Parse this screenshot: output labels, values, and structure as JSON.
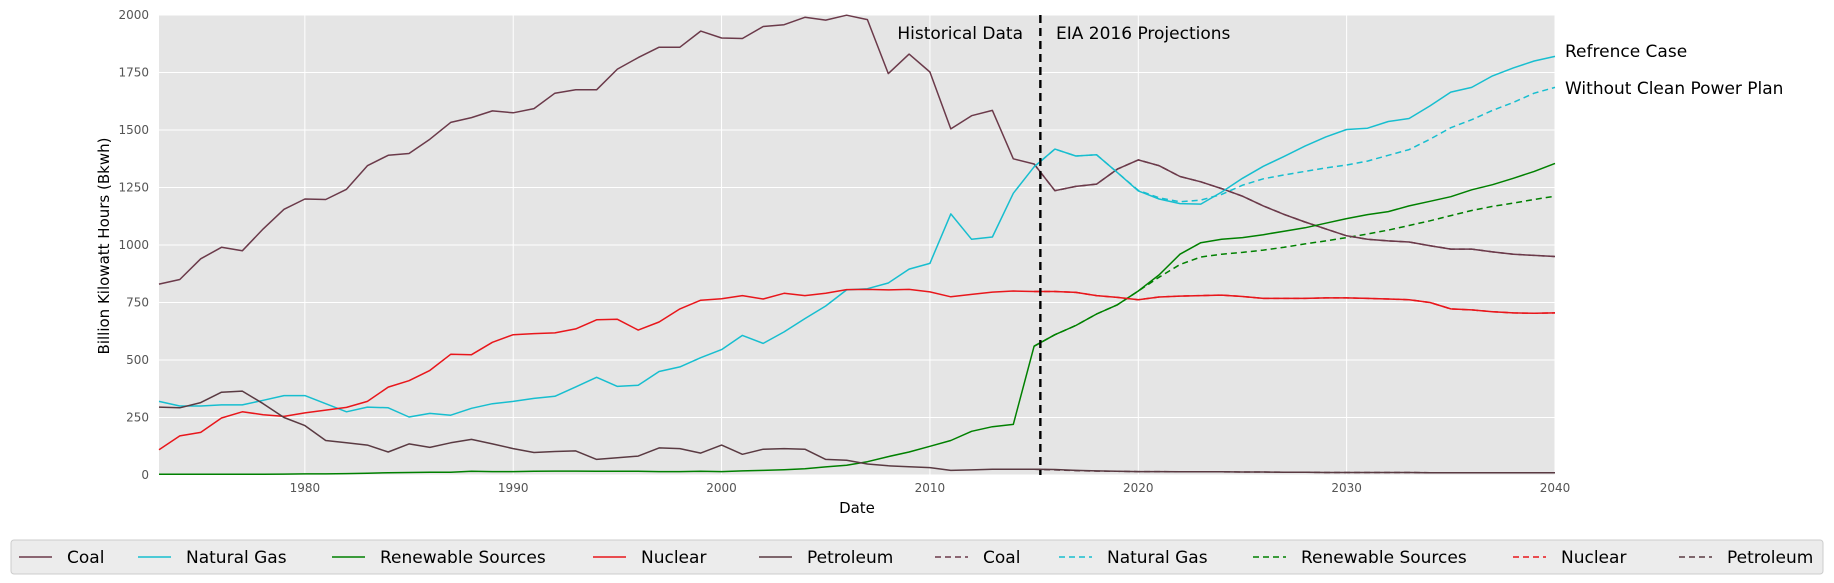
{
  "chart_data": {
    "type": "line",
    "title": "",
    "xlabel": "Date",
    "ylabel": "Billion Kilowatt Hours (Bkwh)",
    "xlim": [
      1973,
      2040
    ],
    "ylim": [
      0,
      2000
    ],
    "x_ticks": [
      "1980",
      "1990",
      "2000",
      "2010",
      "2020",
      "2030",
      "2040"
    ],
    "y_ticks": [
      "0",
      "250",
      "500",
      "750",
      "1000",
      "1250",
      "1500",
      "1750",
      "2000"
    ],
    "grid": true,
    "divider_x": 2015.3,
    "annotations": {
      "historical": "Historical Data",
      "projections": "EIA 2016 Projections",
      "reference_case": "Refrence Case",
      "without_cpp": "Without Clean Power Plan"
    },
    "legend_position": "bottom",
    "colors": {
      "coal": "#6b3a4a",
      "natural_gas": "#17becf",
      "renewable": "#008000",
      "nuclear": "#e8161b",
      "petroleum": "#5a3a42"
    },
    "series": [
      {
        "name": "Coal",
        "style": "solid",
        "color": "#6b3a4a",
        "x": [
          1973,
          1974,
          1975,
          1976,
          1977,
          1978,
          1979,
          1980,
          1981,
          1982,
          1983,
          1984,
          1985,
          1986,
          1987,
          1988,
          1989,
          1990,
          1991,
          1992,
          1993,
          1994,
          1995,
          1996,
          1997,
          1998,
          1999,
          2000,
          2001,
          2002,
          2003,
          2004,
          2005,
          2006,
          2007,
          2008,
          2009,
          2010,
          2011,
          2012,
          2013,
          2014,
          2015,
          2016,
          2017,
          2018,
          2019,
          2020,
          2021,
          2022,
          2023,
          2024,
          2025,
          2026,
          2027,
          2028,
          2029,
          2030,
          2031,
          2032,
          2033,
          2034,
          2035,
          2036,
          2037,
          2038,
          2039,
          2040
        ],
        "values": [
          830,
          850,
          940,
          990,
          975,
          1070,
          1155,
          1200,
          1198,
          1242,
          1345,
          1390,
          1398,
          1460,
          1533,
          1554,
          1583,
          1575,
          1593,
          1660,
          1675,
          1675,
          1765,
          1815,
          1860,
          1860,
          1930,
          1900,
          1898,
          1950,
          1958,
          1990,
          1978,
          1999,
          1980,
          1745,
          1830,
          1752,
          1505,
          1562,
          1585,
          1375,
          1352,
          1236,
          1255,
          1265,
          1330,
          1370,
          1345,
          1298,
          1275,
          1245,
          1212,
          1170,
          1133,
          1100,
          1070,
          1040,
          1025,
          1018,
          1013,
          997,
          982,
          982,
          970,
          960,
          955,
          950
        ]
      },
      {
        "name": "Natural Gas",
        "style": "solid",
        "color": "#17becf",
        "x": [
          1973,
          1974,
          1975,
          1976,
          1977,
          1978,
          1979,
          1980,
          1981,
          1982,
          1983,
          1984,
          1985,
          1986,
          1987,
          1988,
          1989,
          1990,
          1991,
          1992,
          1993,
          1994,
          1995,
          1996,
          1997,
          1998,
          1999,
          2000,
          2001,
          2002,
          2003,
          2004,
          2005,
          2006,
          2007,
          2008,
          2009,
          2010,
          2011,
          2012,
          2013,
          2014,
          2015,
          2016,
          2017,
          2018,
          2019,
          2020,
          2021,
          2022,
          2023,
          2024,
          2025,
          2026,
          2027,
          2028,
          2029,
          2030,
          2031,
          2032,
          2033,
          2034,
          2035,
          2036,
          2037,
          2038,
          2039,
          2040
        ],
        "values": [
          320,
          300,
          300,
          305,
          305,
          325,
          345,
          345,
          310,
          275,
          295,
          292,
          252,
          268,
          260,
          290,
          310,
          320,
          333,
          342,
          383,
          425,
          385,
          390,
          450,
          470,
          510,
          545,
          607,
          572,
          622,
          680,
          735,
          805,
          810,
          835,
          895,
          920,
          1135,
          1025,
          1035,
          1225,
          1340,
          1417,
          1387,
          1392,
          1315,
          1235,
          1200,
          1180,
          1178,
          1230,
          1290,
          1342,
          1385,
          1430,
          1470,
          1502,
          1508,
          1537,
          1550,
          1605,
          1665,
          1685,
          1735,
          1770,
          1800,
          1820
        ]
      },
      {
        "name": "Renewable Sources",
        "style": "solid",
        "color": "#008000",
        "x": [
          1973,
          1974,
          1975,
          1976,
          1977,
          1978,
          1979,
          1980,
          1981,
          1982,
          1983,
          1984,
          1985,
          1986,
          1987,
          1988,
          1989,
          1990,
          1991,
          1992,
          1993,
          1994,
          1995,
          1996,
          1997,
          1998,
          1999,
          2000,
          2001,
          2002,
          2003,
          2004,
          2005,
          2006,
          2007,
          2008,
          2009,
          2010,
          2011,
          2012,
          2013,
          2014,
          2015,
          2016,
          2017,
          2018,
          2019,
          2020,
          2021,
          2022,
          2023,
          2024,
          2025,
          2026,
          2027,
          2028,
          2029,
          2030,
          2031,
          2032,
          2033,
          2034,
          2035,
          2036,
          2037,
          2038,
          2039,
          2040
        ],
        "values": [
          3,
          3,
          3,
          3,
          3,
          3,
          4,
          5,
          5,
          6,
          8,
          10,
          11,
          12,
          12,
          16,
          15,
          15,
          16,
          17,
          17,
          16,
          16,
          16,
          15,
          15,
          16,
          15,
          18,
          20,
          23,
          27,
          35,
          42,
          58,
          80,
          100,
          125,
          150,
          190,
          210,
          220,
          560,
          610,
          650,
          700,
          740,
          800,
          870,
          960,
          1010,
          1025,
          1032,
          1045,
          1060,
          1075,
          1095,
          1115,
          1132,
          1145,
          1170,
          1190,
          1210,
          1240,
          1262,
          1290,
          1320,
          1355
        ]
      },
      {
        "name": "Nuclear",
        "style": "solid",
        "color": "#e8161b",
        "x": [
          1973,
          1974,
          1975,
          1976,
          1977,
          1978,
          1979,
          1980,
          1981,
          1982,
          1983,
          1984,
          1985,
          1986,
          1987,
          1988,
          1989,
          1990,
          1991,
          1992,
          1993,
          1994,
          1995,
          1996,
          1997,
          1998,
          1999,
          2000,
          2001,
          2002,
          2003,
          2004,
          2005,
          2006,
          2007,
          2008,
          2009,
          2010,
          2011,
          2012,
          2013,
          2014,
          2015,
          2016,
          2017,
          2018,
          2019,
          2020,
          2021,
          2022,
          2023,
          2024,
          2025,
          2026,
          2027,
          2028,
          2029,
          2030,
          2031,
          2032,
          2033,
          2034,
          2035,
          2036,
          2037,
          2038,
          2039,
          2040
        ],
        "values": [
          110,
          170,
          185,
          248,
          275,
          262,
          255,
          270,
          282,
          294,
          320,
          382,
          410,
          455,
          525,
          523,
          577,
          610,
          615,
          618,
          635,
          675,
          677,
          630,
          665,
          722,
          760,
          766,
          780,
          765,
          790,
          780,
          790,
          806,
          807,
          805,
          807,
          796,
          775,
          785,
          795,
          800,
          798,
          798,
          794,
          780,
          772,
          762,
          774,
          778,
          780,
          782,
          776,
          768,
          768,
          768,
          770,
          770,
          768,
          765,
          762,
          750,
          722,
          718,
          710,
          705,
          703,
          705
        ]
      },
      {
        "name": "Petroleum",
        "style": "solid",
        "color": "#5a3a42",
        "x": [
          1973,
          1974,
          1975,
          1976,
          1977,
          1978,
          1979,
          1980,
          1981,
          1982,
          1983,
          1984,
          1985,
          1986,
          1987,
          1988,
          1989,
          1990,
          1991,
          1992,
          1993,
          1994,
          1995,
          1996,
          1997,
          1998,
          1999,
          2000,
          2001,
          2002,
          2003,
          2004,
          2005,
          2006,
          2007,
          2008,
          2009,
          2010,
          2011,
          2012,
          2013,
          2014,
          2015,
          2016,
          2017,
          2018,
          2019,
          2020,
          2021,
          2022,
          2023,
          2024,
          2025,
          2026,
          2027,
          2028,
          2029,
          2030,
          2031,
          2032,
          2033,
          2034,
          2035,
          2036,
          2037,
          2038,
          2039,
          2040
        ],
        "values": [
          295,
          292,
          315,
          360,
          365,
          310,
          250,
          215,
          150,
          140,
          130,
          100,
          135,
          120,
          140,
          155,
          135,
          115,
          98,
          102,
          105,
          68,
          75,
          82,
          118,
          115,
          95,
          130,
          90,
          112,
          115,
          112,
          68,
          64,
          48,
          40,
          36,
          32,
          20,
          22,
          25,
          25,
          25,
          24,
          20,
          18,
          16,
          15,
          15,
          14,
          14,
          14,
          13,
          13,
          12,
          12,
          11,
          11,
          11,
          11,
          11,
          10,
          10,
          10,
          10,
          10,
          10,
          10
        ]
      },
      {
        "name": "Coal",
        "style": "dashed",
        "color": "#6b3a4a",
        "x": [
          2015,
          2016,
          2017,
          2018,
          2019,
          2020,
          2021,
          2022,
          2023,
          2024,
          2025,
          2026,
          2027,
          2028,
          2029,
          2030,
          2031,
          2032,
          2033,
          2034,
          2035,
          2036,
          2037,
          2038,
          2039,
          2040
        ],
        "values": [
          1352,
          1236,
          1255,
          1265,
          1330,
          1370,
          1345,
          1298,
          1275,
          1245,
          1212,
          1170,
          1133,
          1100,
          1070,
          1040,
          1025,
          1018,
          1013,
          997,
          982,
          982,
          970,
          960,
          955,
          950
        ]
      },
      {
        "name": "Natural Gas",
        "style": "dashed",
        "color": "#17becf",
        "x": [
          2015,
          2016,
          2017,
          2018,
          2019,
          2020,
          2021,
          2022,
          2023,
          2024,
          2025,
          2026,
          2027,
          2028,
          2029,
          2030,
          2031,
          2032,
          2033,
          2034,
          2035,
          2036,
          2037,
          2038,
          2039,
          2040
        ],
        "values": [
          1340,
          1417,
          1387,
          1392,
          1315,
          1238,
          1205,
          1188,
          1195,
          1220,
          1260,
          1288,
          1305,
          1320,
          1335,
          1348,
          1365,
          1390,
          1415,
          1460,
          1510,
          1545,
          1585,
          1620,
          1660,
          1685
        ]
      },
      {
        "name": "Renewable Sources",
        "style": "dashed",
        "color": "#008000",
        "x": [
          2015,
          2016,
          2017,
          2018,
          2019,
          2020,
          2021,
          2022,
          2023,
          2024,
          2025,
          2026,
          2027,
          2028,
          2029,
          2030,
          2031,
          2032,
          2033,
          2034,
          2035,
          2036,
          2037,
          2038,
          2039,
          2040
        ],
        "values": [
          560,
          610,
          650,
          700,
          740,
          800,
          860,
          915,
          948,
          960,
          968,
          978,
          990,
          1005,
          1018,
          1032,
          1048,
          1065,
          1085,
          1105,
          1128,
          1150,
          1168,
          1182,
          1198,
          1212
        ]
      },
      {
        "name": "Nuclear",
        "style": "dashed",
        "color": "#e8161b",
        "x": [
          2015,
          2016,
          2017,
          2018,
          2019,
          2020,
          2021,
          2022,
          2023,
          2024,
          2025,
          2026,
          2027,
          2028,
          2029,
          2030,
          2031,
          2032,
          2033,
          2034,
          2035,
          2036,
          2037,
          2038,
          2039,
          2040
        ],
        "values": [
          798,
          798,
          794,
          780,
          772,
          762,
          774,
          778,
          780,
          782,
          776,
          768,
          768,
          768,
          770,
          770,
          768,
          765,
          762,
          750,
          722,
          718,
          710,
          705,
          703,
          705
        ]
      },
      {
        "name": "Petroleum",
        "style": "dashed",
        "color": "#5a3a42",
        "x": [
          2015,
          2016,
          2017,
          2018,
          2019,
          2020,
          2021,
          2022,
          2023,
          2024,
          2025,
          2026,
          2027,
          2028,
          2029,
          2030,
          2031,
          2032,
          2033,
          2034,
          2035,
          2036,
          2037,
          2038,
          2039,
          2040
        ],
        "values": [
          25,
          22,
          19,
          17,
          16,
          15,
          15,
          14,
          14,
          14,
          13,
          13,
          12,
          12,
          11,
          11,
          11,
          11,
          11,
          10,
          10,
          10,
          10,
          10,
          10,
          10
        ]
      }
    ]
  }
}
